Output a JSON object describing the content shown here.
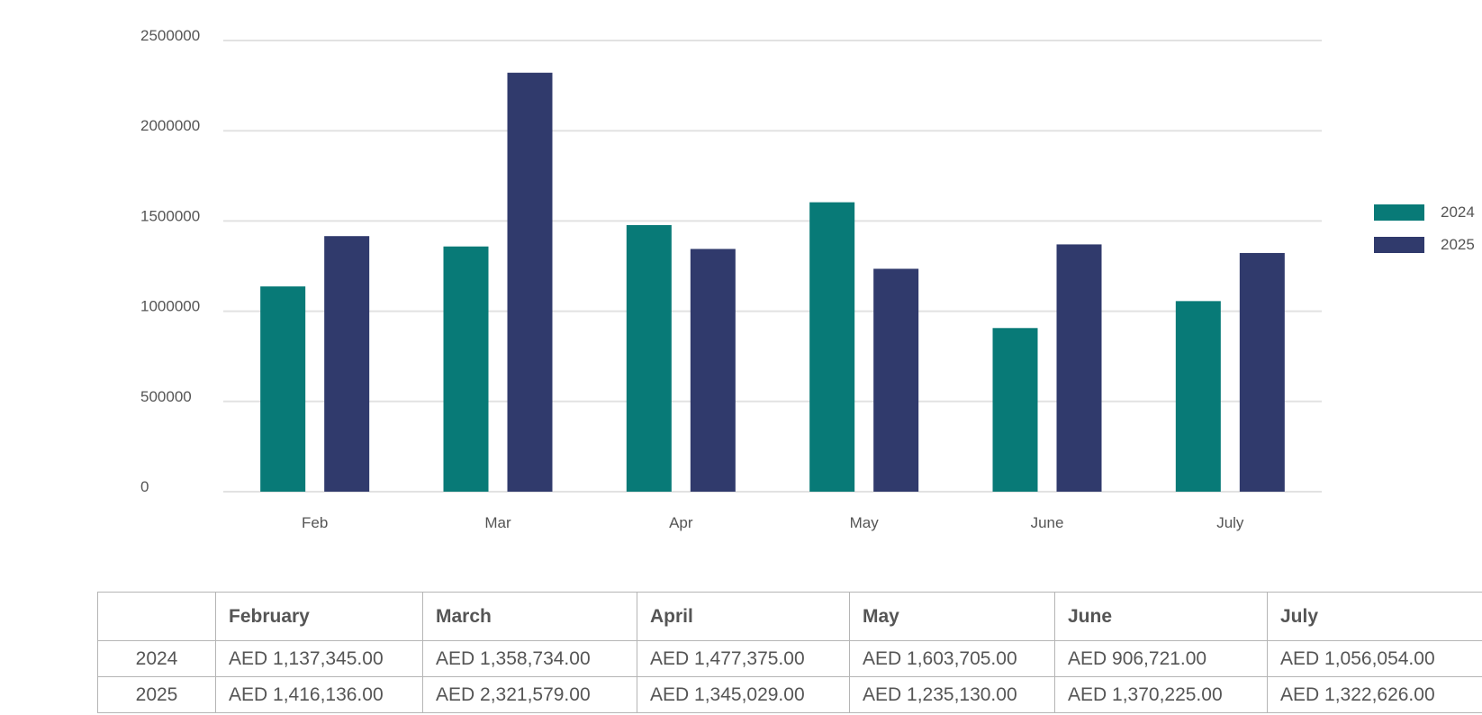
{
  "chart_data": {
    "type": "bar",
    "categories": [
      "Feb",
      "Mar",
      "Apr",
      "May",
      "June",
      "July"
    ],
    "series": [
      {
        "name": "2024",
        "color": "#087a77",
        "values": [
          1137345,
          1358734,
          1477375,
          1603705,
          906721,
          1056054
        ]
      },
      {
        "name": "2025",
        "color": "#303a6c",
        "values": [
          1416136,
          2321579,
          1345029,
          1235130,
          1370225,
          1322626
        ]
      }
    ],
    "ylim": [
      0,
      2500000
    ],
    "yticks": [
      "0",
      "500000",
      "1000000",
      "1500000",
      "2000000",
      "2500000"
    ],
    "grid": true,
    "legend": "right"
  },
  "table": {
    "headers": [
      "",
      "February",
      "March",
      "April",
      "May",
      "June",
      "July"
    ],
    "rows": [
      {
        "label": "2024",
        "cells": [
          "AED 1,137,345.00",
          "AED 1,358,734.00",
          "AED 1,477,375.00",
          "AED 1,603,705.00",
          "AED 906,721.00",
          "AED 1,056,054.00"
        ]
      },
      {
        "label": "2025",
        "cells": [
          "AED 1,416,136.00",
          "AED 2,321,579.00",
          "AED 1,345,029.00",
          "AED 1,235,130.00",
          "AED 1,370,225.00",
          "AED 1,322,626.00"
        ]
      }
    ]
  }
}
